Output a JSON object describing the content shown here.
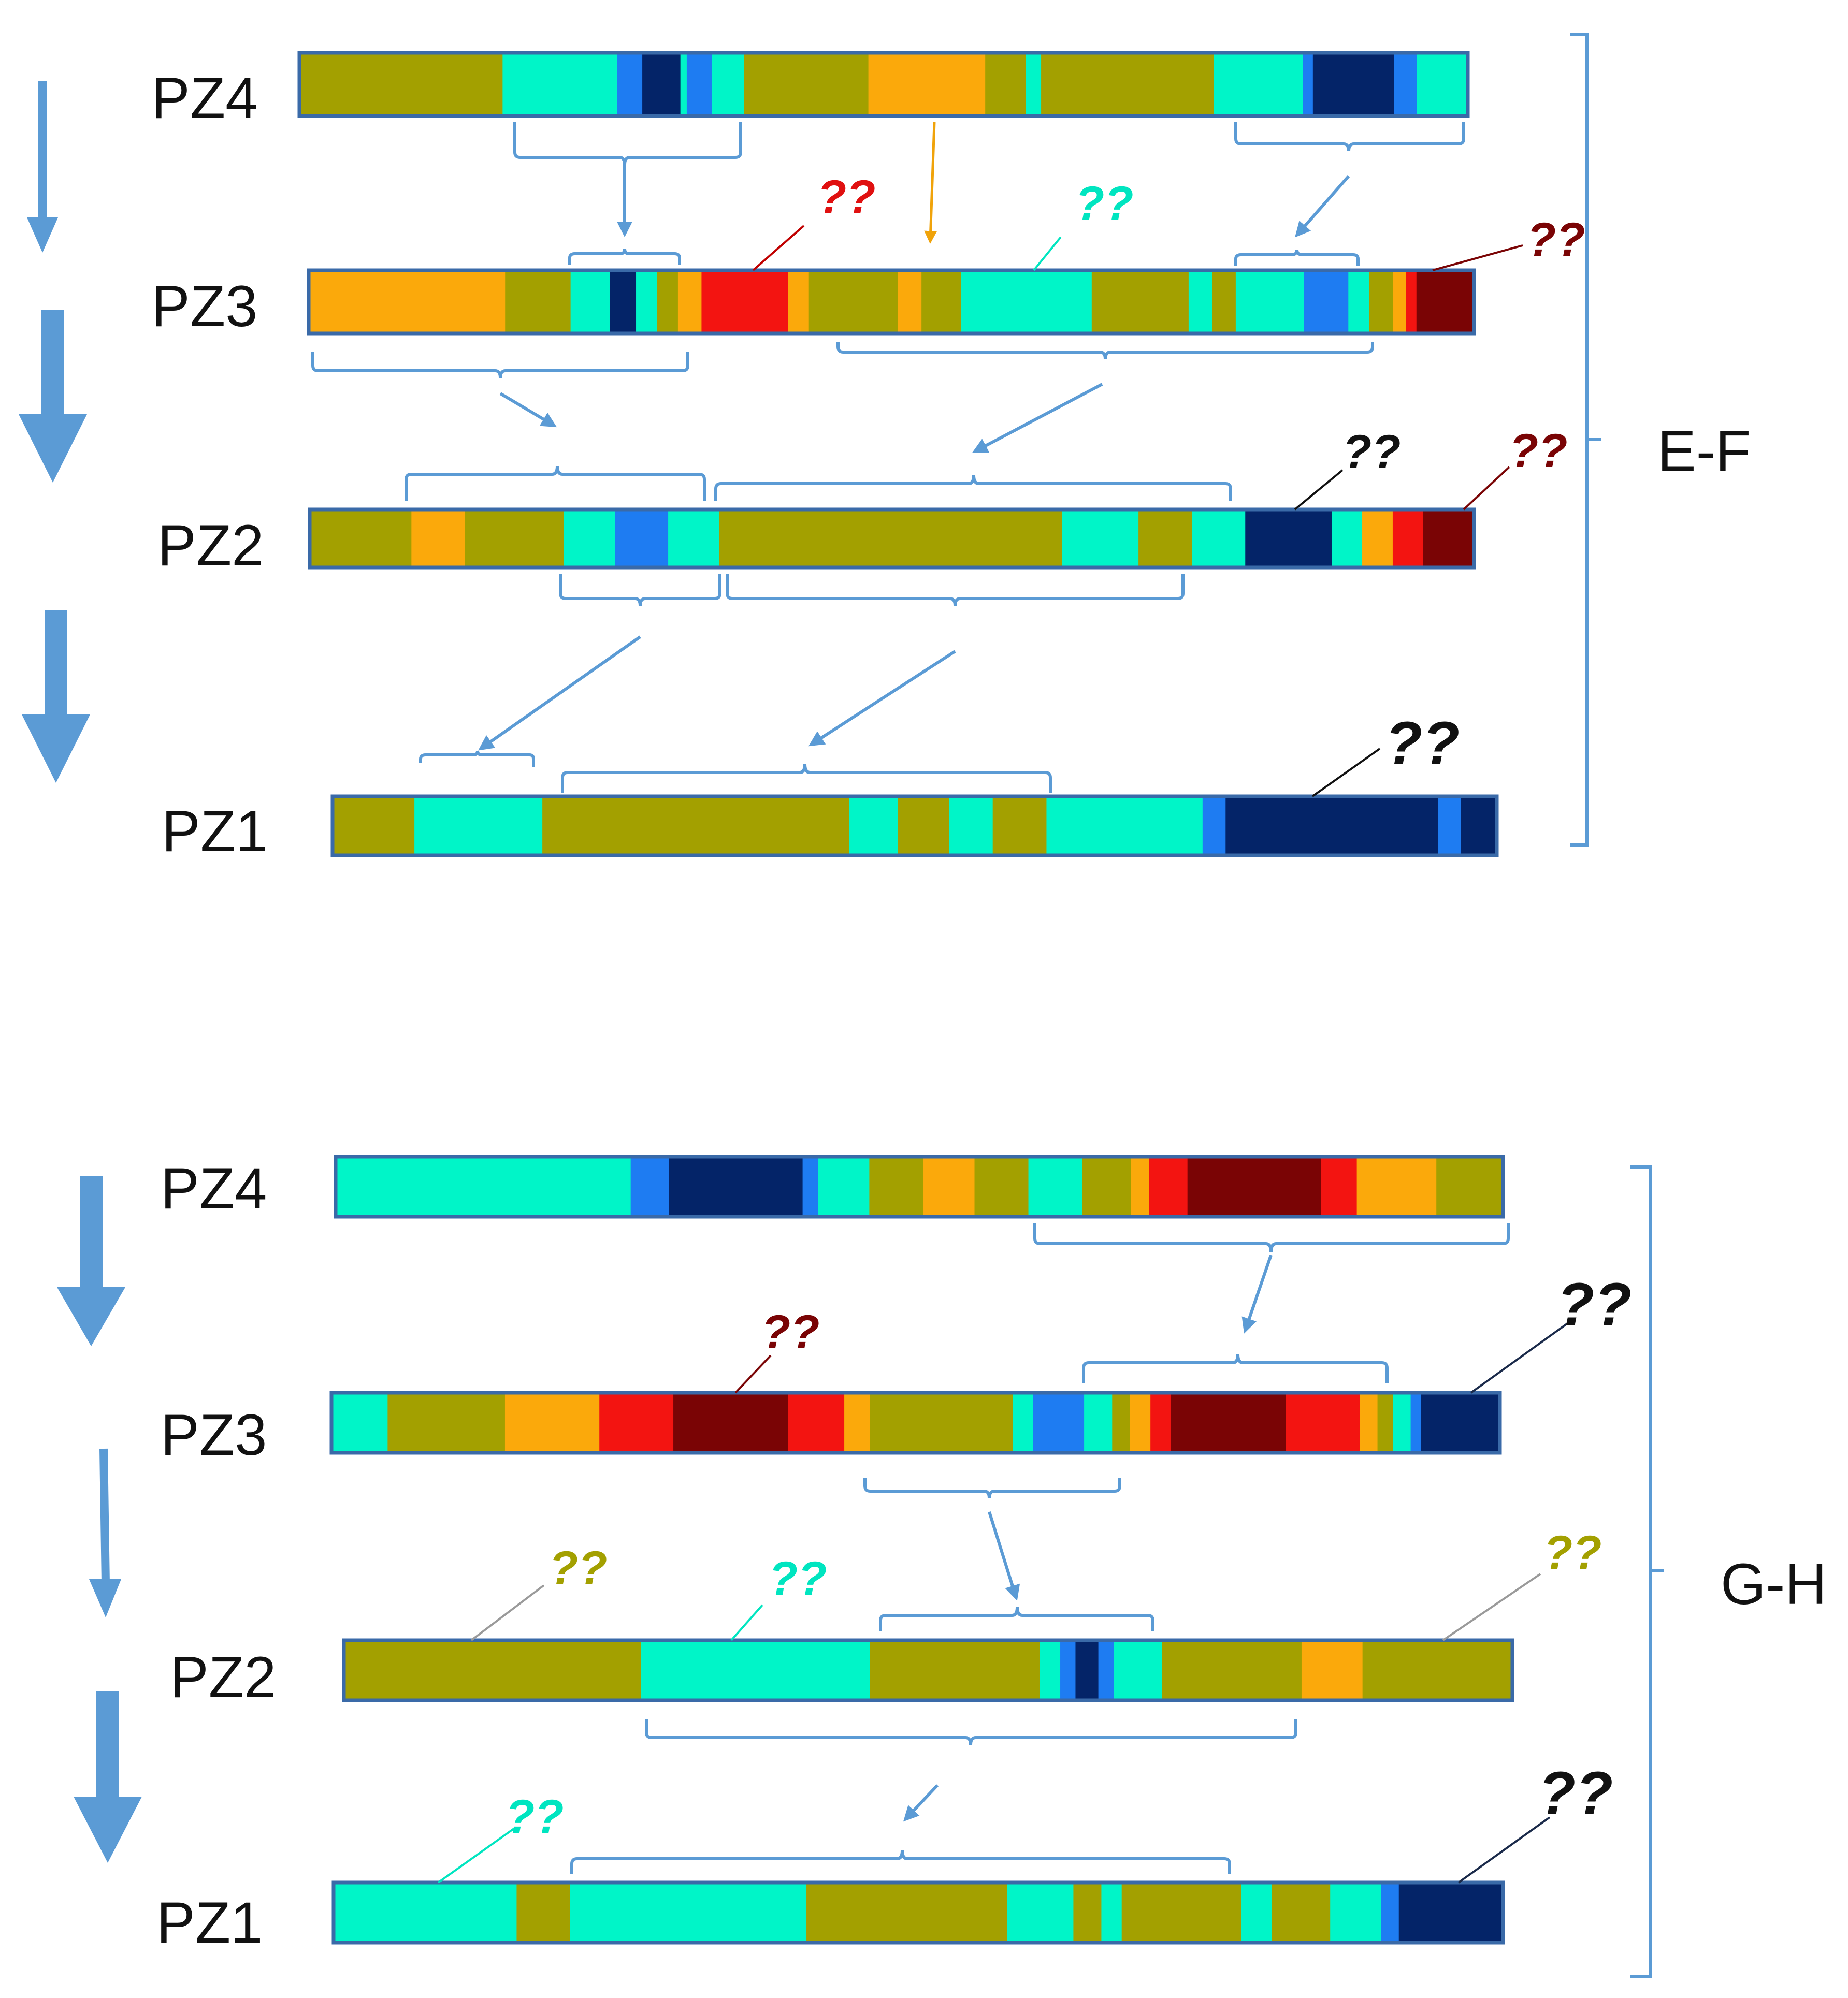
{
  "colors": {
    "olive": "#a3a000",
    "aqua": "#00f5c8",
    "blue": "#1e7cf2",
    "navy": "#042468",
    "orange": "#fba90b",
    "red": "#f31411",
    "maroon": "#7a0405",
    "bar_border": "#3a6aa8",
    "connector": "#5b9bd5",
    "callout_black": "#111111"
  },
  "unknown_mark": "??",
  "panels": [
    {
      "group_label": "E-F",
      "rows": [
        {
          "label": "PZ4",
          "segments": [
            {
              "color": "olive",
              "length": 160
            },
            {
              "color": "aqua",
              "length": 90
            },
            {
              "color": "blue",
              "length": 20
            },
            {
              "color": "navy",
              "length": 30
            },
            {
              "color": "aqua",
              "length": 5
            },
            {
              "color": "blue",
              "length": 20
            },
            {
              "color": "aqua",
              "length": 25
            },
            {
              "color": "olive",
              "length": 98
            },
            {
              "color": "orange",
              "length": 92
            },
            {
              "color": "olive",
              "length": 32
            },
            {
              "color": "aqua",
              "length": 12
            },
            {
              "color": "olive",
              "length": 136
            },
            {
              "color": "aqua",
              "length": 70
            },
            {
              "color": "blue",
              "length": 8
            },
            {
              "color": "navy",
              "length": 64
            },
            {
              "color": "blue",
              "length": 18
            },
            {
              "color": "aqua",
              "length": 40
            }
          ]
        },
        {
          "label": "PZ3",
          "segments": [
            {
              "color": "orange",
              "length": 150
            },
            {
              "color": "olive",
              "length": 50
            },
            {
              "color": "aqua",
              "length": 30
            },
            {
              "color": "navy",
              "length": 20
            },
            {
              "color": "aqua",
              "length": 16
            },
            {
              "color": "olive",
              "length": 16
            },
            {
              "color": "orange",
              "length": 18
            },
            {
              "color": "red",
              "length": 66
            },
            {
              "color": "orange",
              "length": 16
            },
            {
              "color": "olive",
              "length": 68
            },
            {
              "color": "orange",
              "length": 18
            },
            {
              "color": "olive",
              "length": 30
            },
            {
              "color": "aqua",
              "length": 100
            },
            {
              "color": "olive",
              "length": 74
            },
            {
              "color": "aqua",
              "length": 18
            },
            {
              "color": "olive",
              "length": 18
            },
            {
              "color": "aqua",
              "length": 52
            },
            {
              "color": "blue",
              "length": 34
            },
            {
              "color": "aqua",
              "length": 16
            },
            {
              "color": "olive",
              "length": 18
            },
            {
              "color": "orange",
              "length": 10
            },
            {
              "color": "red",
              "length": 8
            },
            {
              "color": "maroon",
              "length": 44
            }
          ]
        },
        {
          "label": "PZ2",
          "segments": [
            {
              "color": "olive",
              "length": 80
            },
            {
              "color": "orange",
              "length": 42
            },
            {
              "color": "olive",
              "length": 78
            },
            {
              "color": "aqua",
              "length": 40
            },
            {
              "color": "blue",
              "length": 42
            },
            {
              "color": "aqua",
              "length": 40
            },
            {
              "color": "olive",
              "length": 270
            },
            {
              "color": "aqua",
              "length": 60
            },
            {
              "color": "olive",
              "length": 42
            },
            {
              "color": "aqua",
              "length": 42
            },
            {
              "color": "navy",
              "length": 68
            },
            {
              "color": "aqua",
              "length": 24
            },
            {
              "color": "orange",
              "length": 24
            },
            {
              "color": "red",
              "length": 24
            },
            {
              "color": "maroon",
              "length": 40
            }
          ]
        },
        {
          "label": "PZ1",
          "segments": [
            {
              "color": "olive",
              "length": 64
            },
            {
              "color": "aqua",
              "length": 100
            },
            {
              "color": "olive",
              "length": 240
            },
            {
              "color": "aqua",
              "length": 38
            },
            {
              "color": "olive",
              "length": 40
            },
            {
              "color": "aqua",
              "length": 34
            },
            {
              "color": "olive",
              "length": 42
            },
            {
              "color": "aqua",
              "length": 122
            },
            {
              "color": "blue",
              "length": 18
            },
            {
              "color": "navy",
              "length": 166
            },
            {
              "color": "blue",
              "length": 18
            },
            {
              "color": "navy",
              "length": 28
            }
          ]
        }
      ]
    },
    {
      "group_label": "G-H",
      "rows": [
        {
          "label": "PZ4",
          "segments": [
            {
              "color": "aqua",
              "length": 230
            },
            {
              "color": "blue",
              "length": 30
            },
            {
              "color": "navy",
              "length": 104
            },
            {
              "color": "blue",
              "length": 12
            },
            {
              "color": "aqua",
              "length": 40
            },
            {
              "color": "olive",
              "length": 42
            },
            {
              "color": "orange",
              "length": 40
            },
            {
              "color": "olive",
              "length": 42
            },
            {
              "color": "aqua",
              "length": 42
            },
            {
              "color": "olive",
              "length": 38
            },
            {
              "color": "orange",
              "length": 14
            },
            {
              "color": "red",
              "length": 30
            },
            {
              "color": "maroon",
              "length": 104
            },
            {
              "color": "red",
              "length": 28
            },
            {
              "color": "orange",
              "length": 62
            },
            {
              "color": "olive",
              "length": 52
            }
          ]
        },
        {
          "label": "PZ3",
          "segments": [
            {
              "color": "aqua",
              "length": 44
            },
            {
              "color": "olive",
              "length": 92
            },
            {
              "color": "orange",
              "length": 74
            },
            {
              "color": "red",
              "length": 58
            },
            {
              "color": "maroon",
              "length": 90
            },
            {
              "color": "red",
              "length": 44
            },
            {
              "color": "orange",
              "length": 20
            },
            {
              "color": "olive",
              "length": 112
            },
            {
              "color": "aqua",
              "length": 16
            },
            {
              "color": "blue",
              "length": 40
            },
            {
              "color": "aqua",
              "length": 22
            },
            {
              "color": "olive",
              "length": 14
            },
            {
              "color": "orange",
              "length": 16
            },
            {
              "color": "red",
              "length": 16
            },
            {
              "color": "maroon",
              "length": 90
            },
            {
              "color": "red",
              "length": 58
            },
            {
              "color": "orange",
              "length": 14
            },
            {
              "color": "olive",
              "length": 12
            },
            {
              "color": "aqua",
              "length": 14
            },
            {
              "color": "blue",
              "length": 8
            },
            {
              "color": "navy",
              "length": 62
            }
          ]
        },
        {
          "label": "PZ2",
          "segments": [
            {
              "color": "olive",
              "length": 234
            },
            {
              "color": "aqua",
              "length": 180
            },
            {
              "color": "olive",
              "length": 134
            },
            {
              "color": "aqua",
              "length": 16
            },
            {
              "color": "blue",
              "length": 12
            },
            {
              "color": "navy",
              "length": 18
            },
            {
              "color": "blue",
              "length": 12
            },
            {
              "color": "aqua",
              "length": 38
            },
            {
              "color": "olive",
              "length": 110
            },
            {
              "color": "orange",
              "length": 48
            },
            {
              "color": "olive",
              "length": 118
            }
          ]
        },
        {
          "label": "PZ1",
          "segments": [
            {
              "color": "aqua",
              "length": 144
            },
            {
              "color": "olive",
              "length": 42
            },
            {
              "color": "aqua",
              "length": 186
            },
            {
              "color": "olive",
              "length": 158
            },
            {
              "color": "aqua",
              "length": 52
            },
            {
              "color": "olive",
              "length": 22
            },
            {
              "color": "aqua",
              "length": 16
            },
            {
              "color": "olive",
              "length": 94
            },
            {
              "color": "aqua",
              "length": 24
            },
            {
              "color": "olive",
              "length": 46
            },
            {
              "color": "aqua",
              "length": 40
            },
            {
              "color": "blue",
              "length": 14
            },
            {
              "color": "navy",
              "length": 82
            }
          ]
        }
      ]
    }
  ]
}
